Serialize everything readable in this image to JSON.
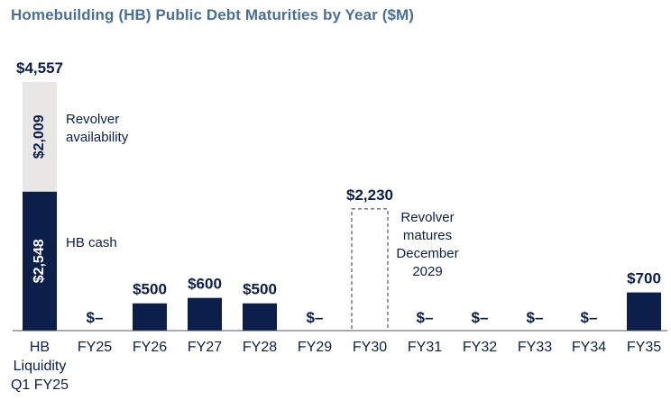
{
  "chart_data": {
    "type": "bar",
    "title": "Homebuilding (HB) Public Debt Maturities by Year ($M)",
    "categories": [
      "HB Liquidity Q1 FY25",
      "FY25",
      "FY26",
      "FY27",
      "FY28",
      "FY29",
      "FY30",
      "FY31",
      "FY32",
      "FY33",
      "FY34",
      "FY35"
    ],
    "category_lines": [
      [
        "HB",
        "Liquidity",
        "Q1 FY25"
      ],
      [
        "FY25"
      ],
      [
        "FY26"
      ],
      [
        "FY27"
      ],
      [
        "FY28"
      ],
      [
        "FY29"
      ],
      [
        "FY30"
      ],
      [
        "FY31"
      ],
      [
        "FY32"
      ],
      [
        "FY33"
      ],
      [
        "FY34"
      ],
      [
        "FY35"
      ]
    ],
    "values": [
      4557,
      0,
      500,
      600,
      500,
      0,
      2230,
      0,
      0,
      0,
      0,
      700
    ],
    "value_labels": [
      "$4,557",
      "$–",
      "$500",
      "$600",
      "$500",
      "$–",
      "$2,230",
      "$–",
      "$–",
      "$–",
      "$–",
      "$700"
    ],
    "bar_styles": [
      "stacked",
      "solid",
      "solid",
      "solid",
      "solid",
      "solid",
      "dashed",
      "solid",
      "solid",
      "solid",
      "solid",
      "solid"
    ],
    "stack": {
      "category": "HB Liquidity Q1 FY25",
      "segments": [
        {
          "name": "HB cash",
          "value": 2548,
          "label": "$2,548",
          "color": "#0c1e4a"
        },
        {
          "name": "Revolver availability",
          "value": 2009,
          "label": "$2,009",
          "color": "#e9e7e5"
        }
      ]
    },
    "annotations": {
      "revolver_availability": [
        "Revolver",
        "availability"
      ],
      "hb_cash": "HB cash",
      "revolver_maturity": [
        "Revolver",
        "matures",
        "December",
        "2029"
      ]
    },
    "xlabel": "",
    "ylabel": "",
    "ylim": [
      0,
      4557
    ],
    "colors": {
      "bar": "#0c1e4a",
      "light": "#e9e7e5",
      "title": "#4a6f97",
      "axis": "#555555"
    }
  }
}
